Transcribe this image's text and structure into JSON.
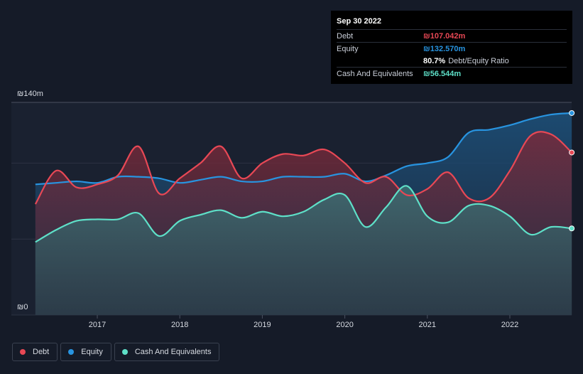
{
  "chart_data": {
    "type": "area",
    "currency": "₪",
    "y_unit": "m",
    "ylim": [
      0,
      140
    ],
    "y_tick_labels": [
      "₪140m",
      "₪0"
    ],
    "x_tick_labels": [
      "2017",
      "2018",
      "2019",
      "2020",
      "2021",
      "2022"
    ],
    "x_range": [
      2016.25,
      2022.75
    ],
    "series": [
      {
        "name": "Debt",
        "color": "#e84855",
        "x": [
          2016.25,
          2016.5,
          2016.75,
          2017.0,
          2017.25,
          2017.5,
          2017.75,
          2018.0,
          2018.25,
          2018.5,
          2018.75,
          2019.0,
          2019.25,
          2019.5,
          2019.75,
          2020.0,
          2020.25,
          2020.5,
          2020.75,
          2021.0,
          2021.25,
          2021.5,
          2021.75,
          2022.0,
          2022.25,
          2022.5,
          2022.75
        ],
        "values": [
          73,
          95,
          84,
          86,
          92,
          111,
          80,
          90,
          100,
          111,
          90,
          100,
          106,
          105,
          109,
          100,
          87,
          91,
          79,
          83,
          94,
          77,
          77,
          95,
          118,
          119,
          107
        ]
      },
      {
        "name": "Equity",
        "color": "#2894e0",
        "x": [
          2016.25,
          2016.5,
          2016.75,
          2017.0,
          2017.25,
          2017.5,
          2017.75,
          2018.0,
          2018.25,
          2018.5,
          2018.75,
          2019.0,
          2019.25,
          2019.5,
          2019.75,
          2020.0,
          2020.25,
          2020.5,
          2020.75,
          2021.0,
          2021.25,
          2021.5,
          2021.75,
          2022.0,
          2022.25,
          2022.5,
          2022.75
        ],
        "values": [
          86,
          87,
          88,
          87,
          91,
          91,
          90,
          87,
          89,
          91,
          88,
          88,
          91,
          91,
          91,
          93,
          88,
          92,
          98,
          100,
          104,
          120,
          122,
          125,
          129,
          132,
          133
        ]
      },
      {
        "name": "Cash And Equivalents",
        "color": "#5ee0c8",
        "x": [
          2016.25,
          2016.5,
          2016.75,
          2017.0,
          2017.25,
          2017.5,
          2017.75,
          2018.0,
          2018.25,
          2018.5,
          2018.75,
          2019.0,
          2019.25,
          2019.5,
          2019.75,
          2020.0,
          2020.25,
          2020.5,
          2020.75,
          2021.0,
          2021.25,
          2021.5,
          2021.75,
          2022.0,
          2022.25,
          2022.5,
          2022.75
        ],
        "values": [
          48,
          56,
          62,
          63,
          63,
          67,
          52,
          62,
          66,
          69,
          64,
          68,
          65,
          68,
          76,
          79,
          58,
          71,
          85,
          65,
          61,
          72,
          72,
          65,
          53,
          58,
          57
        ]
      }
    ]
  },
  "tooltip": {
    "date": "Sep 30 2022",
    "rows": [
      {
        "label": "Debt",
        "value": "₪107.042m",
        "color": "#e84855"
      },
      {
        "label": "Equity",
        "value": "₪132.570m",
        "color": "#2894e0"
      },
      {
        "label": "",
        "value": "80.7%",
        "extra": "Debt/Equity Ratio",
        "color": "#ffffff"
      },
      {
        "label": "Cash And Equivalents",
        "value": "₪56.544m",
        "color": "#5ee0c8"
      }
    ]
  },
  "legend": [
    {
      "label": "Debt",
      "color": "#e84855"
    },
    {
      "label": "Equity",
      "color": "#2894e0"
    },
    {
      "label": "Cash And Equivalents",
      "color": "#5ee0c8"
    }
  ]
}
